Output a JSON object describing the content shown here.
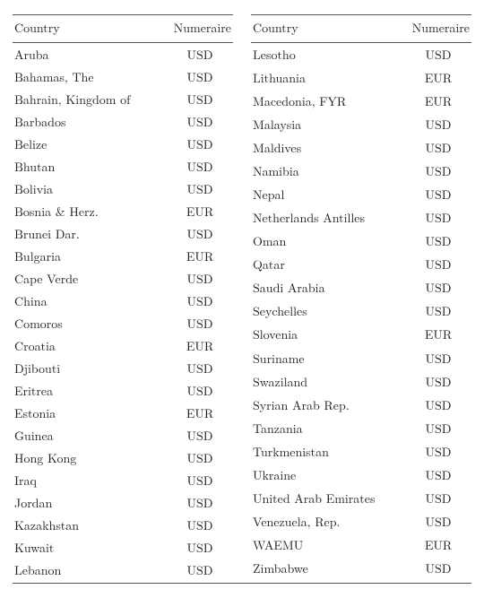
{
  "headers": {
    "country": "Country",
    "numeraire": "Numeraire"
  },
  "left": [
    {
      "country": "Aruba",
      "numeraire": "USD"
    },
    {
      "country": "Bahamas, The",
      "numeraire": "USD"
    },
    {
      "country": "Bahrain, Kingdom of",
      "numeraire": "USD"
    },
    {
      "country": "Barbados",
      "numeraire": "USD"
    },
    {
      "country": "Belize",
      "numeraire": "USD"
    },
    {
      "country": "Bhutan",
      "numeraire": "USD"
    },
    {
      "country": "Bolivia",
      "numeraire": "USD"
    },
    {
      "country": "Bosnia & Herz.",
      "numeraire": "EUR"
    },
    {
      "country": "Brunei Dar.",
      "numeraire": "USD"
    },
    {
      "country": "Bulgaria",
      "numeraire": "EUR"
    },
    {
      "country": "Cape Verde",
      "numeraire": "USD"
    },
    {
      "country": "China",
      "numeraire": "USD"
    },
    {
      "country": "Comoros",
      "numeraire": "USD"
    },
    {
      "country": "Croatia",
      "numeraire": "EUR"
    },
    {
      "country": "Djibouti",
      "numeraire": "USD"
    },
    {
      "country": "Eritrea",
      "numeraire": "USD"
    },
    {
      "country": "Estonia",
      "numeraire": "EUR"
    },
    {
      "country": "Guinea",
      "numeraire": "USD"
    },
    {
      "country": "Hong Kong",
      "numeraire": "USD"
    },
    {
      "country": "Iraq",
      "numeraire": "USD"
    },
    {
      "country": "Jordan",
      "numeraire": "USD"
    },
    {
      "country": "Kazakhstan",
      "numeraire": "USD"
    },
    {
      "country": "Kuwait",
      "numeraire": "USD"
    },
    {
      "country": "Lebanon",
      "numeraire": "USD"
    }
  ],
  "right": [
    {
      "country": "Lesotho",
      "numeraire": "USD"
    },
    {
      "country": "Lithuania",
      "numeraire": "EUR"
    },
    {
      "country": "Macedonia, FYR",
      "numeraire": "EUR"
    },
    {
      "country": "Malaysia",
      "numeraire": "USD"
    },
    {
      "country": "Maldives",
      "numeraire": "USD"
    },
    {
      "country": "Namibia",
      "numeraire": "USD"
    },
    {
      "country": "Nepal",
      "numeraire": "USD"
    },
    {
      "country": "Netherlands Antilles",
      "numeraire": "USD"
    },
    {
      "country": "Oman",
      "numeraire": "USD"
    },
    {
      "country": "Qatar",
      "numeraire": "USD"
    },
    {
      "country": "Saudi Arabia",
      "numeraire": "USD"
    },
    {
      "country": "Seychelles",
      "numeraire": "USD"
    },
    {
      "country": "Slovenia",
      "numeraire": "EUR"
    },
    {
      "country": "Suriname",
      "numeraire": "USD"
    },
    {
      "country": "Swaziland",
      "numeraire": "USD"
    },
    {
      "country": "Syrian Arab Rep.",
      "numeraire": "USD"
    },
    {
      "country": "Tanzania",
      "numeraire": "USD"
    },
    {
      "country": "Turkmenistan",
      "numeraire": "USD"
    },
    {
      "country": "Ukraine",
      "numeraire": "USD"
    },
    {
      "country": "United Arab Emirates",
      "numeraire": "USD"
    },
    {
      "country": "Venezuela, Rep.",
      "numeraire": "USD"
    },
    {
      "country": "WAEMU",
      "numeraire": "EUR"
    },
    {
      "country": "Zimbabwe",
      "numeraire": "USD"
    }
  ]
}
